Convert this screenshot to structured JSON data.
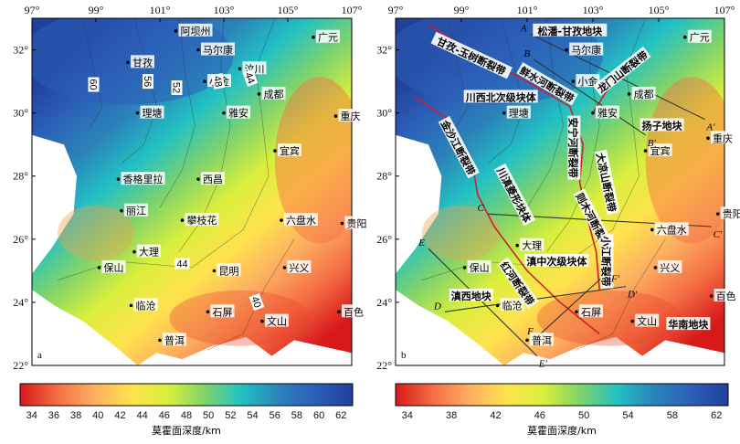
{
  "colors": {
    "scale": [
      "#d7191c",
      "#f46d43",
      "#fdae61",
      "#ffe34d",
      "#d9ef3c",
      "#7fd36b",
      "#22c1c3",
      "#2b83ba",
      "#2c5fb8",
      "#21409a"
    ],
    "ocean": "#ffffff",
    "fault": "#cc1e2e",
    "profile": "#333333"
  },
  "panels": [
    {
      "id": "a",
      "label": "a",
      "lon_ticks": [
        "97°",
        "99°",
        "101°",
        "103°",
        "105°",
        "107°"
      ],
      "lat_ticks": [
        "32°",
        "30°",
        "28°",
        "26°",
        "24°",
        "22°"
      ],
      "colorbar": {
        "ticks": [
          "34",
          "36",
          "38",
          "40",
          "42",
          "44",
          "46",
          "48",
          "50",
          "52",
          "54",
          "56",
          "58",
          "60",
          "62"
        ],
        "title": "莫霍面深度/km"
      },
      "cities": [
        {
          "name": "阿坝州",
          "lon": 101.5,
          "lat": 32.6
        },
        {
          "name": "马尔康",
          "lon": 102.2,
          "lat": 32.0
        },
        {
          "name": "广元",
          "lon": 105.8,
          "lat": 32.4
        },
        {
          "name": "甘孜",
          "lon": 100.0,
          "lat": 31.6
        },
        {
          "name": "汶川",
          "lon": 103.5,
          "lat": 31.4
        },
        {
          "name": "小金",
          "lon": 102.4,
          "lat": 31.0
        },
        {
          "name": "成都",
          "lon": 104.1,
          "lat": 30.6
        },
        {
          "name": "理塘",
          "lon": 100.3,
          "lat": 30.0
        },
        {
          "name": "雅安",
          "lon": 103.0,
          "lat": 30.0
        },
        {
          "name": "重庆",
          "lon": 106.5,
          "lat": 29.9
        },
        {
          "name": "宜宾",
          "lon": 104.6,
          "lat": 28.8
        },
        {
          "name": "香格里拉",
          "lon": 99.7,
          "lat": 27.9
        },
        {
          "name": "西昌",
          "lon": 102.2,
          "lat": 27.9
        },
        {
          "name": "丽江",
          "lon": 99.8,
          "lat": 26.9
        },
        {
          "name": "攀枝花",
          "lon": 101.7,
          "lat": 26.6
        },
        {
          "name": "六盘水",
          "lon": 104.8,
          "lat": 26.6
        },
        {
          "name": "贵阳",
          "lon": 106.7,
          "lat": 26.5
        },
        {
          "name": "大理",
          "lon": 100.2,
          "lat": 25.6
        },
        {
          "name": "保山",
          "lon": 99.1,
          "lat": 25.1
        },
        {
          "name": "昆明",
          "lon": 102.7,
          "lat": 25.0
        },
        {
          "name": "兴义",
          "lon": 104.9,
          "lat": 25.1
        },
        {
          "name": "临沧",
          "lon": 100.1,
          "lat": 23.9
        },
        {
          "name": "石屏",
          "lon": 102.5,
          "lat": 23.7
        },
        {
          "name": "文山",
          "lon": 104.2,
          "lat": 23.4
        },
        {
          "name": "百色",
          "lon": 106.6,
          "lat": 23.7
        },
        {
          "name": "普洱",
          "lon": 101.0,
          "lat": 22.8
        }
      ],
      "contour_labels": [
        {
          "text": "60",
          "lon": 98.9,
          "lat": 30.9,
          "rot": 90
        },
        {
          "text": "56",
          "lon": 100.6,
          "lat": 31.0,
          "rot": 90
        },
        {
          "text": "52",
          "lon": 101.5,
          "lat": 30.8,
          "rot": 90
        },
        {
          "text": "48",
          "lon": 102.8,
          "lat": 31.0,
          "rot": 80
        },
        {
          "text": "44",
          "lon": 103.8,
          "lat": 31.1,
          "rot": 70
        },
        {
          "text": "44",
          "lon": 101.7,
          "lat": 25.2,
          "rot": 0
        },
        {
          "text": "40",
          "lon": 104.0,
          "lat": 24.0,
          "rot": 70
        }
      ]
    },
    {
      "id": "b",
      "label": "b",
      "lon_ticks": [
        "97°",
        "99°",
        "101°",
        "103°",
        "105°",
        "107°"
      ],
      "lat_ticks": [
        "32°",
        "30°",
        "28°",
        "26°",
        "24°",
        "22°"
      ],
      "colorbar": {
        "ticks": [
          "34",
          "38",
          "42",
          "46",
          "50",
          "54",
          "58",
          "62"
        ],
        "title": "莫霍面深度/km"
      },
      "cities": [
        {
          "name": "马尔康",
          "lon": 102.2,
          "lat": 32.0
        },
        {
          "name": "广元",
          "lon": 105.8,
          "lat": 32.4
        },
        {
          "name": "小金",
          "lon": 102.4,
          "lat": 31.0
        },
        {
          "name": "成都",
          "lon": 104.1,
          "lat": 30.6
        },
        {
          "name": "理塘",
          "lon": 100.3,
          "lat": 30.0
        },
        {
          "name": "雅安",
          "lon": 103.0,
          "lat": 30.0
        },
        {
          "name": "重庆",
          "lon": 106.5,
          "lat": 29.2
        },
        {
          "name": "宜宾",
          "lon": 104.6,
          "lat": 28.8
        },
        {
          "name": "大理",
          "lon": 100.7,
          "lat": 25.8
        },
        {
          "name": "保山",
          "lon": 99.1,
          "lat": 25.1
        },
        {
          "name": "临沧",
          "lon": 100.1,
          "lat": 23.9
        },
        {
          "name": "石屏",
          "lon": 102.5,
          "lat": 23.7
        },
        {
          "name": "普洱",
          "lon": 101.0,
          "lat": 22.8
        },
        {
          "name": "文山",
          "lon": 104.2,
          "lat": 23.4
        },
        {
          "name": "六盘水",
          "lon": 104.8,
          "lat": 26.3
        },
        {
          "name": "贵阳",
          "lon": 106.8,
          "lat": 26.8
        },
        {
          "name": "兴义",
          "lon": 104.9,
          "lat": 25.1
        },
        {
          "name": "百色",
          "lon": 106.6,
          "lat": 24.2
        }
      ],
      "tectonic_labels": [
        {
          "text": "松潘-甘孜地块",
          "lon": 102.3,
          "lat": 32.6,
          "rot": 0
        },
        {
          "text": "甘孜-玉树断裂带",
          "lon": 99.3,
          "lat": 31.8,
          "rot": 25
        },
        {
          "text": "鲜水河断裂带",
          "lon": 101.6,
          "lat": 30.9,
          "rot": 30
        },
        {
          "text": "龙门山断裂带",
          "lon": 103.9,
          "lat": 31.3,
          "rot": -38
        },
        {
          "text": "川西北次级块体",
          "lon": 100.2,
          "lat": 30.5,
          "rot": 0
        },
        {
          "text": "扬子地块",
          "lon": 105.1,
          "lat": 29.6,
          "rot": 0
        },
        {
          "text": "金沙江断裂带",
          "lon": 98.9,
          "lat": 28.9,
          "rot": 62
        },
        {
          "text": "川滇菱形块体",
          "lon": 100.6,
          "lat": 27.4,
          "rot": 62
        },
        {
          "text": "安宁河断裂带",
          "lon": 102.4,
          "lat": 28.9,
          "rot": 90
        },
        {
          "text": "大凉山断裂带",
          "lon": 103.4,
          "lat": 27.8,
          "rot": 78
        },
        {
          "text": "则木河断裂带",
          "lon": 103.0,
          "lat": 26.6,
          "rot": 62
        },
        {
          "text": "小江断裂带",
          "lon": 103.4,
          "lat": 25.3,
          "rot": 90
        },
        {
          "text": "红河断裂带",
          "lon": 100.7,
          "lat": 24.6,
          "rot": 55
        },
        {
          "text": "滇中次级块体",
          "lon": 101.9,
          "lat": 25.3,
          "rot": 0
        },
        {
          "text": "滇西地块",
          "lon": 99.3,
          "lat": 24.2,
          "rot": 0
        },
        {
          "text": "华南地块",
          "lon": 105.9,
          "lat": 23.3,
          "rot": 0
        }
      ],
      "profiles": [
        {
          "start": "A",
          "end": "A'",
          "a": [
            101.1,
            32.5
          ],
          "b": [
            106.4,
            29.8
          ]
        },
        {
          "start": "B",
          "end": "B'",
          "a": [
            101.2,
            31.7
          ],
          "b": [
            104.6,
            29.3
          ]
        },
        {
          "start": "C",
          "end": "C'",
          "a": [
            99.8,
            26.8
          ],
          "b": [
            106.6,
            26.4
          ]
        },
        {
          "start": "D",
          "end": "D'",
          "a": [
            98.5,
            23.7
          ],
          "b": [
            104.0,
            24.5
          ]
        },
        {
          "start": "E",
          "end": "E'",
          "a": [
            98.0,
            25.7
          ],
          "b": [
            101.3,
            22.3
          ]
        },
        {
          "start": "F",
          "end": "F'",
          "a": [
            101.3,
            22.9
          ],
          "b": [
            103.5,
            25.0
          ]
        }
      ]
    }
  ]
}
